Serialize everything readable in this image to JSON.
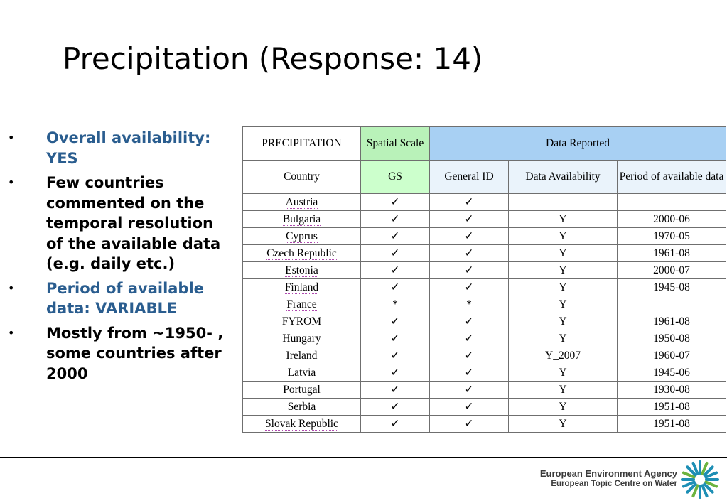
{
  "title": "Precipitation (Response: 14)",
  "bullets": [
    {
      "text": "Overall availability: YES",
      "color": "#2a5d8f"
    },
    {
      "text": "Few countries commented on the temporal resolution of the available data (e.g. daily etc.)",
      "color": "#000000"
    },
    {
      "text": "Period of available data: VARIABLE",
      "color": "#2a5d8f"
    },
    {
      "text": "Mostly from ~1950- , some countries after 2000",
      "color": "#000000"
    }
  ],
  "table": {
    "header1": {
      "category": "PRECIPITATION",
      "spatial_scale": "Spatial Scale",
      "data_reported": "Data Reported"
    },
    "header2": {
      "country": "Country",
      "gs": "GS",
      "general_id": "General ID",
      "data_availability": "Data Availability",
      "period": "Period of available data"
    },
    "rows": [
      {
        "country": "Austria",
        "gs": "✓",
        "gid": "✓",
        "avail": "",
        "period": ""
      },
      {
        "country": "Bulgaria",
        "gs": "✓",
        "gid": "✓",
        "avail": "Y",
        "period": "2000-06"
      },
      {
        "country": "Cyprus",
        "gs": "✓",
        "gid": "✓",
        "avail": "Y",
        "period": "1970-05"
      },
      {
        "country": "Czech Republic",
        "gs": "✓",
        "gid": "✓",
        "avail": "Y",
        "period": "1961-08"
      },
      {
        "country": "Estonia",
        "gs": "✓",
        "gid": "✓",
        "avail": "Y",
        "period": "2000-07"
      },
      {
        "country": "Finland",
        "gs": "✓",
        "gid": "✓",
        "avail": "Y",
        "period": "1945-08"
      },
      {
        "country": "France",
        "gs": "*",
        "gid": "*",
        "avail": "Y",
        "period": ""
      },
      {
        "country": "FYROM",
        "gs": "✓",
        "gid": "✓",
        "avail": "Y",
        "period": "1961-08"
      },
      {
        "country": "Hungary",
        "gs": "✓",
        "gid": "✓",
        "avail": "Y",
        "period": "1950-08"
      },
      {
        "country": "Ireland",
        "gs": "✓",
        "gid": "✓",
        "avail": "Y_2007",
        "period": "1960-07"
      },
      {
        "country": "Latvia",
        "gs": "✓",
        "gid": "✓",
        "avail": "Y",
        "period": "1945-06"
      },
      {
        "country": "Portugal",
        "gs": "✓",
        "gid": "✓",
        "avail": "Y",
        "period": "1930-08"
      },
      {
        "country": "Serbia",
        "gs": "✓",
        "gid": "✓",
        "avail": "Y",
        "period": "1951-08"
      },
      {
        "country": "Slovak Republic",
        "gs": "✓",
        "gid": "✓",
        "avail": "Y",
        "period": "1951-08"
      }
    ]
  },
  "footer": {
    "agency": "European Environment Agency",
    "centre": "European Topic Centre on Water",
    "logo_icon": "eea-sun-logo-icon",
    "logo_color": "#1e8fb5",
    "logo_accent": "#6cb33f"
  }
}
